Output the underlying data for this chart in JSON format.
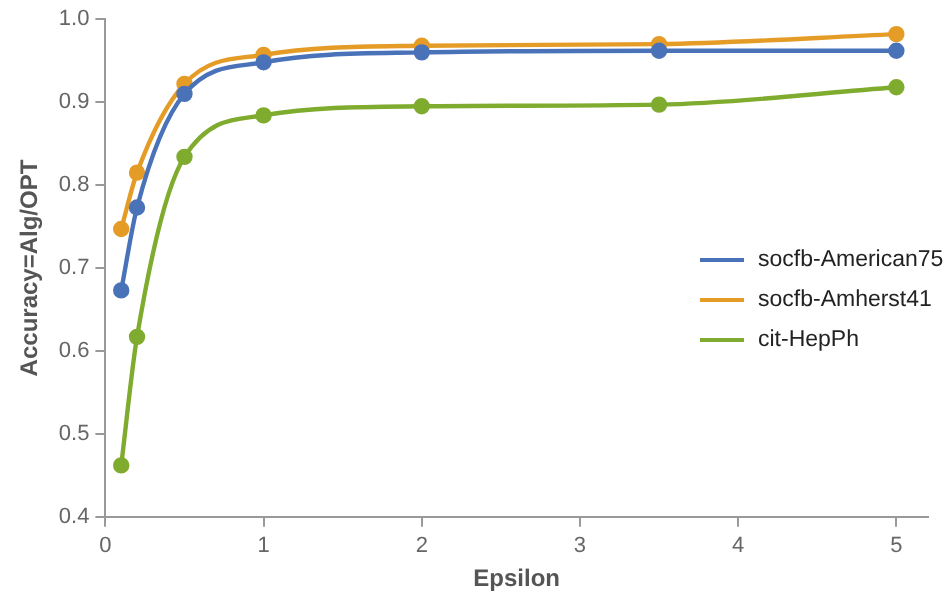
{
  "chart_data": {
    "type": "line",
    "xlabel": "Epsilon",
    "ylabel": "Accuracy=Alg/OPT",
    "x": [
      0.1,
      0.2,
      0.5,
      1,
      2,
      3.5,
      5
    ],
    "series": [
      {
        "name": "socfb-American75",
        "color": "#4a72b8",
        "values": [
          0.673,
          0.773,
          0.91,
          0.948,
          0.96,
          0.962,
          0.962
        ]
      },
      {
        "name": "socfb-Amherst41",
        "color": "#e59c27",
        "values": [
          0.747,
          0.815,
          0.922,
          0.957,
          0.968,
          0.97,
          0.982
        ]
      },
      {
        "name": "cit-HepPh",
        "color": "#7fab2e",
        "values": [
          0.462,
          0.617,
          0.834,
          0.884,
          0.895,
          0.897,
          0.918
        ]
      }
    ],
    "xlim": [
      0,
      5.2
    ],
    "xticks": [
      0,
      1,
      2,
      3,
      4,
      5
    ],
    "ylim": [
      0.4,
      1.0
    ],
    "yticks": [
      {
        "value": 0.4,
        "label": "0.4"
      },
      {
        "value": 0.5,
        "label": "0.5"
      },
      {
        "value": 0.6,
        "label": "0.6"
      },
      {
        "value": 0.7,
        "label": "0.7"
      },
      {
        "value": 0.8,
        "label": "0.8"
      },
      {
        "value": 0.9,
        "label": "0.9"
      },
      {
        "value": 1.0,
        "label": "1.0"
      }
    ],
    "grid": false,
    "legend": "right",
    "marker": "circle",
    "line_style": "solid"
  }
}
